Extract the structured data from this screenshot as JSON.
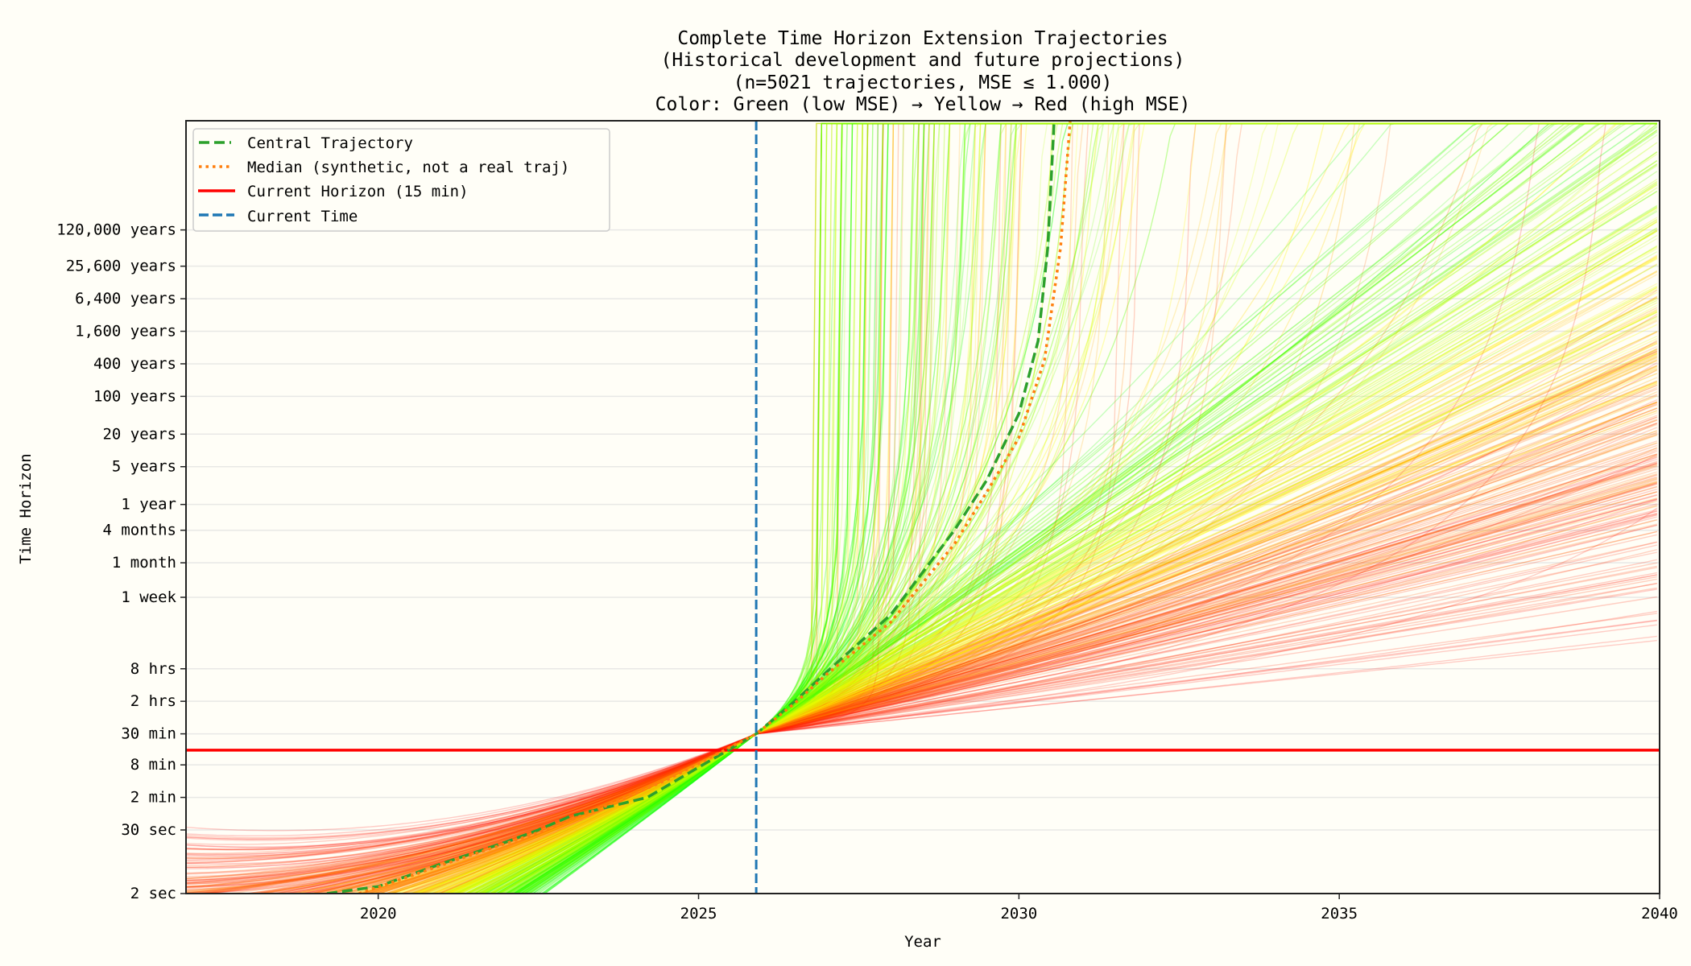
{
  "chart_data": {
    "type": "line",
    "title_lines": [
      "Complete Time Horizon Extension Trajectories",
      "(Historical development and future projections)",
      "(n=5021 trajectories, MSE ≤ 1.000)",
      "Color: Green (low MSE) → Yellow → Red (high MSE)"
    ],
    "xlabel": "Year",
    "ylabel": "Time Horizon",
    "xlim": [
      2017,
      2040
    ],
    "x_ticks": [
      2020,
      2025,
      2030,
      2035,
      2040
    ],
    "y_scale": "log",
    "y_units": "minutes",
    "ylim": [
      0.0333,
      6600000000000.0
    ],
    "y_ticks": [
      {
        "label": "2 sec",
        "value": 0.0333
      },
      {
        "label": "30 sec",
        "value": 0.5
      },
      {
        "label": "2 min",
        "value": 2
      },
      {
        "label": "8 min",
        "value": 8
      },
      {
        "label": "30 min",
        "value": 30
      },
      {
        "label": "2 hrs",
        "value": 120
      },
      {
        "label": "8 hrs",
        "value": 480
      },
      {
        "label": "1 week",
        "value": 10080
      },
      {
        "label": "1 month",
        "value": 43800
      },
      {
        "label": "4 months",
        "value": 175200
      },
      {
        "label": "1 year",
        "value": 525600
      },
      {
        "label": "5 years",
        "value": 2628000
      },
      {
        "label": "20 years",
        "value": 10512000
      },
      {
        "label": "100 years",
        "value": 52560000
      },
      {
        "label": "400 years",
        "value": 210240000
      },
      {
        "label": "1,600 years",
        "value": 840960000
      },
      {
        "label": "6,400 years",
        "value": 3363840000
      },
      {
        "label": "25,600 years",
        "value": 13455360000
      },
      {
        "label": "120,000 years",
        "value": 63072000000
      }
    ],
    "grid": "horizontal",
    "legend_placement": "top-left",
    "n_trajectories": 5021,
    "mse_max": 1.0,
    "color_scale": [
      "#00ff00",
      "#ffff00",
      "#ff0000"
    ],
    "series": [
      {
        "name": "Central Trajectory",
        "color": "#2ca02c",
        "style": "dashed",
        "points": [
          [
            2019.2,
            0.0333
          ],
          [
            2020,
            0.045
          ],
          [
            2021,
            0.12
          ],
          [
            2022,
            0.3
          ],
          [
            2022.5,
            0.5
          ],
          [
            2023,
            0.9
          ],
          [
            2024.2,
            2
          ],
          [
            2025,
            7.2
          ],
          [
            2025.9,
            30
          ],
          [
            2026.5,
            120
          ],
          [
            2027,
            420
          ],
          [
            2028,
            4800
          ],
          [
            2029,
            180000
          ],
          [
            2029.5,
            1500000
          ],
          [
            2030,
            25000000
          ],
          [
            2030.3,
            560000000
          ],
          [
            2030.45,
            30000000000.0
          ],
          [
            2030.55,
            6600000000000.0
          ]
        ]
      },
      {
        "name": "Median (synthetic, not a real traj)",
        "color": "#ff7f0e",
        "style": "dotted",
        "points": [
          [
            2019.7,
            0.0333
          ],
          [
            2020.5,
            0.07
          ],
          [
            2021.5,
            0.18
          ],
          [
            2022.5,
            0.45
          ],
          [
            2023.5,
            1.3
          ],
          [
            2024.5,
            4.2
          ],
          [
            2025.9,
            30
          ],
          [
            2026.5,
            110
          ],
          [
            2027,
            380
          ],
          [
            2028,
            3500
          ],
          [
            2029,
            100000
          ],
          [
            2029.5,
            900000
          ],
          [
            2030,
            9000000
          ],
          [
            2030.4,
            250000000
          ],
          [
            2030.65,
            30000000000.0
          ],
          [
            2030.8,
            6600000000000.0
          ]
        ]
      },
      {
        "name": "Current Horizon (15 min)",
        "color": "#ff0000",
        "style": "solid",
        "y_value": 15
      },
      {
        "name": "Current Time",
        "color": "#1f77b4",
        "style": "dashed",
        "x_value": 2025.9
      }
    ]
  }
}
